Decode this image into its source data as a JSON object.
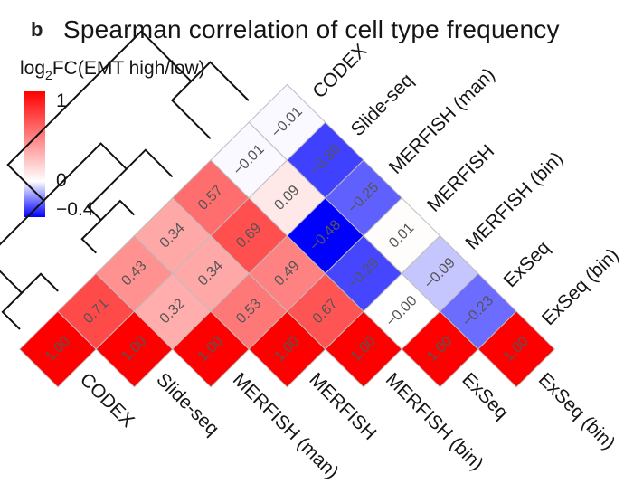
{
  "figure": {
    "panel_letter": "b",
    "title": "Spearman correlation of cell type frequency"
  },
  "legend": {
    "title_prefix": "log",
    "title_sub": "2",
    "title_suffix": "FC(EMT high/low)",
    "tick_labels": [
      "1",
      "0",
      "−0.4"
    ],
    "colors": {
      "high": "#ff0000",
      "mid": "#ffffff",
      "low": "#0000ff"
    }
  },
  "chart_data": {
    "type": "heatmap",
    "title": "Spearman correlation of cell type frequency",
    "labels": [
      "CODEX",
      "Slide-seq",
      "MERFISH (man)",
      "MERFISH",
      "MERFISH (bin)",
      "ExSeq",
      "ExSeq (bin)"
    ],
    "matrix_lower_triangle": [
      [
        1.0
      ],
      [
        0.71,
        1.0
      ],
      [
        0.43,
        0.32,
        1.0
      ],
      [
        0.34,
        0.34,
        0.53,
        1.0
      ],
      [
        0.57,
        0.69,
        0.49,
        0.67,
        1.0
      ],
      [
        -0.01,
        0.09,
        -0.48,
        -0.29,
        -0.0,
        1.0
      ],
      [
        -0.01,
        -0.3,
        -0.25,
        0.01,
        -0.09,
        -0.23,
        1.0
      ]
    ],
    "value_labels": [
      [
        "1.00"
      ],
      [
        "0.71",
        "1.00"
      ],
      [
        "0.43",
        "0.32",
        "1.00"
      ],
      [
        "0.34",
        "0.34",
        "0.53",
        "1.00"
      ],
      [
        "0.57",
        "0.69",
        "0.49",
        "0.67",
        "1.00"
      ],
      [
        "−0.01",
        "0.09",
        "−0.48",
        "−0.29",
        "−0.00",
        "1.00"
      ],
      [
        "−0.01",
        "−0.30",
        "−0.25",
        "0.01",
        "−0.09",
        "−0.23",
        "1.00"
      ]
    ],
    "color_range": [
      -0.4,
      1
    ]
  }
}
